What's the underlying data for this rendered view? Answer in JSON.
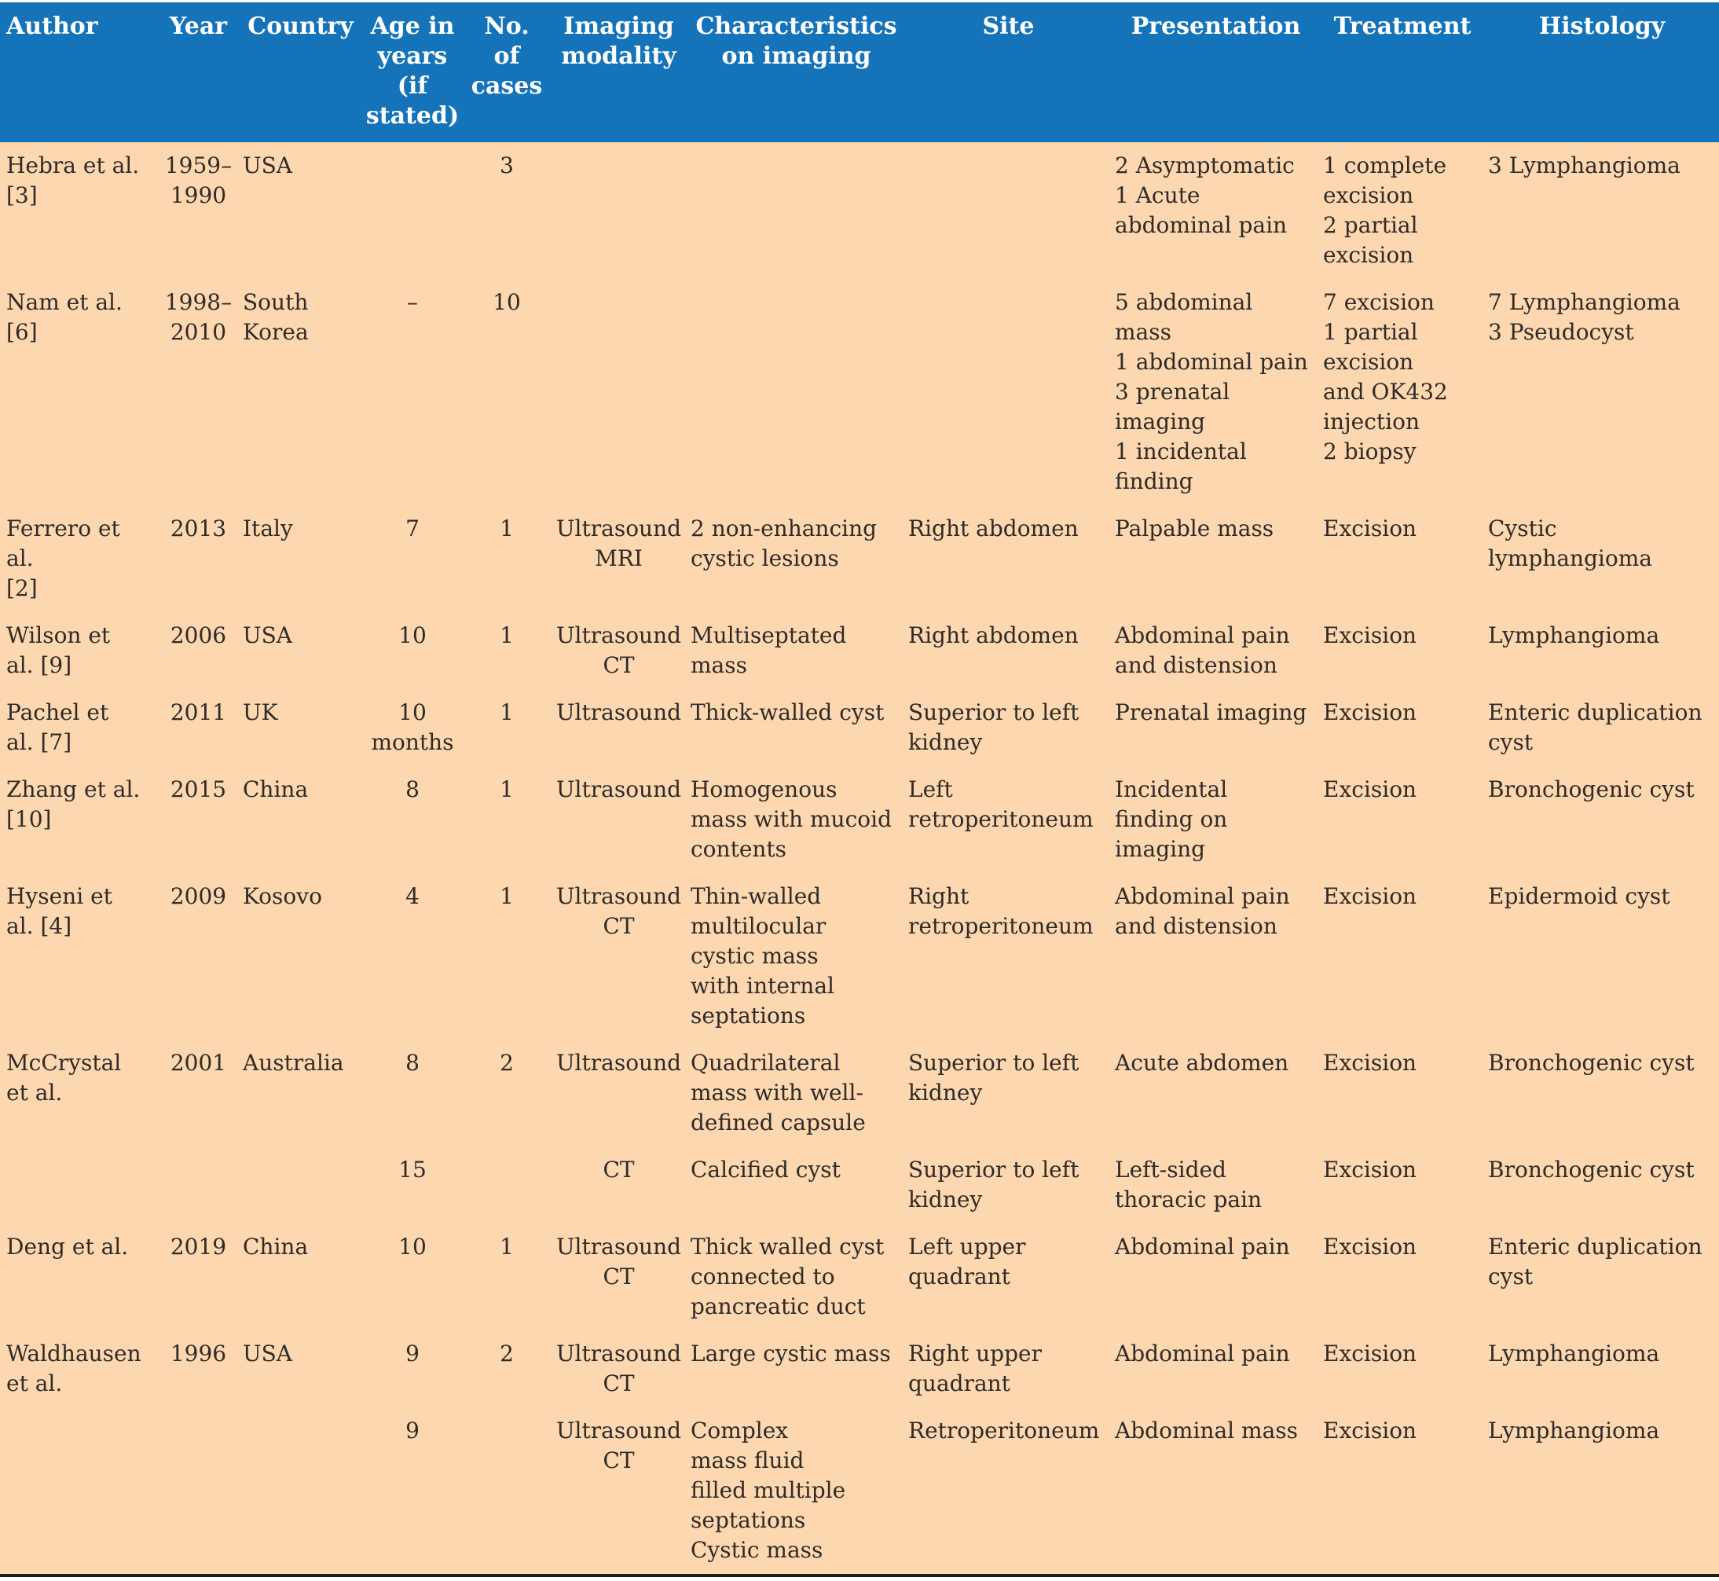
{
  "colors": {
    "header_background": "#1573ba",
    "header_text": "#ffffff",
    "body_background": "#fcd7b0",
    "body_text": "#2f2b28",
    "bottom_border": "#241b13"
  },
  "table": {
    "headers": [
      "Author",
      "Year",
      "Country",
      "Age in\nyears\n(if\nstated)",
      "No.\nof\ncases",
      "Imaging\nmodality",
      "Characteristics\non imaging",
      "Site",
      "Presentation",
      "Treatment",
      "Histology"
    ],
    "rows": [
      [
        "Hebra et al.\n[3]",
        "1959–\n1990",
        "USA",
        "",
        "3",
        "",
        "",
        "",
        "2 Asymptomatic\n1 Acute\nabdominal pain",
        "1 complete\nexcision\n2 partial\nexcision",
        "3 Lymphangioma"
      ],
      [
        "Nam et al.\n[6]",
        "1998–\n2010",
        "South\nKorea",
        "–",
        "10",
        "",
        "",
        "",
        "5 abdominal\nmass\n1 abdominal pain\n3 prenatal\nimaging\n1 incidental\nfinding",
        "7 excision\n1 partial\nexcision\nand OK432\ninjection\n2 biopsy",
        "7 Lymphangioma\n3 Pseudocyst"
      ],
      [
        "Ferrero et\nal.\n[2]",
        "2013",
        "Italy",
        "7",
        "1",
        "Ultrasound\nMRI",
        "2 non-enhancing\ncystic lesions",
        "Right abdomen",
        "Palpable mass",
        "Excision",
        "Cystic\nlymphangioma"
      ],
      [
        "Wilson et\nal. [9]",
        "2006",
        "USA",
        "10",
        "1",
        "Ultrasound\nCT",
        "Multiseptated\nmass",
        "Right abdomen",
        "Abdominal pain\nand distension",
        "Excision",
        "Lymphangioma"
      ],
      [
        "Pachel et\nal. [7]",
        "2011",
        "UK",
        "10\nmonths",
        "1",
        "Ultrasound",
        "Thick-walled cyst",
        "Superior to left\nkidney",
        "Prenatal imaging",
        "Excision",
        "Enteric duplication\ncyst"
      ],
      [
        "Zhang et al.\n[10]",
        "2015",
        "China",
        "8",
        "1",
        "Ultrasound",
        "Homogenous\nmass with mucoid\ncontents",
        "Left\nretroperitoneum",
        "Incidental\nfinding on\nimaging",
        "Excision",
        "Bronchogenic cyst"
      ],
      [
        "Hyseni et\nal. [4]",
        "2009",
        "Kosovo",
        "4",
        "1",
        "Ultrasound\nCT",
        "Thin-walled\nmultilocular\ncystic mass\nwith internal\nseptations",
        "Right\nretroperitoneum",
        "Abdominal pain\nand distension",
        "Excision",
        "Epidermoid cyst"
      ],
      [
        "McCrystal\net al.",
        "2001",
        "Australia",
        "8",
        "2",
        "Ultrasound",
        "Quadrilateral\nmass with well-\ndefined capsule",
        "Superior to left\nkidney",
        "Acute abdomen",
        "Excision",
        "Bronchogenic cyst"
      ],
      [
        "",
        "",
        "",
        "15",
        "",
        "CT",
        "Calcified cyst",
        "Superior to left\nkidney",
        "Left-sided\nthoracic pain",
        "Excision",
        "Bronchogenic cyst"
      ],
      [
        "Deng et al.",
        "2019",
        "China",
        "10",
        "1",
        "Ultrasound\nCT",
        "Thick walled cyst\nconnected to\npancreatic duct",
        "Left upper\nquadrant",
        "Abdominal pain",
        "Excision",
        "Enteric duplication\ncyst"
      ],
      [
        "Waldhausen\net al.",
        "1996",
        "USA",
        "9",
        "2",
        "Ultrasound\nCT",
        "Large cystic mass",
        "Right upper\nquadrant",
        "Abdominal pain",
        "Excision",
        "Lymphangioma"
      ],
      [
        "",
        "",
        "",
        "9",
        "",
        "Ultrasound\nCT",
        "Complex\nmass fluid\nfilled multiple\nseptations\nCystic mass",
        "Retroperitoneum",
        "Abdominal mass",
        "Excision",
        "Lymphangioma"
      ]
    ]
  }
}
